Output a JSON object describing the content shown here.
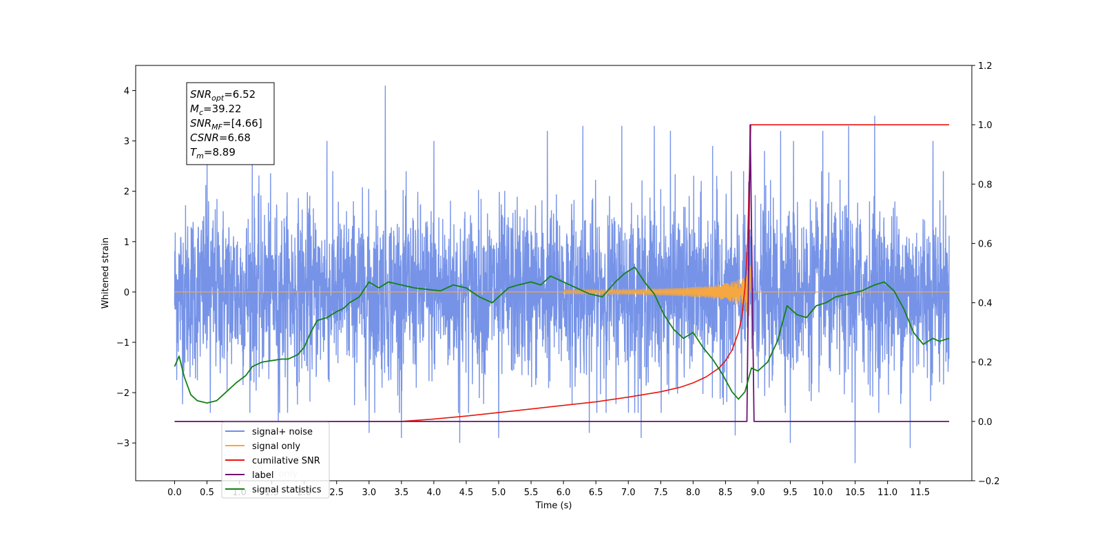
{
  "chart_data": {
    "type": "line",
    "title": "",
    "xlabel": "Time (s)",
    "ylabel": "Whitened strain",
    "xlim": [
      -0.6,
      12.3
    ],
    "ylim": [
      -3.75,
      4.5
    ],
    "y2lim": [
      -0.2,
      1.2
    ],
    "x_ticks": [
      "0.0",
      "0.5",
      "1.0",
      "1.5",
      "2.0",
      "2.5",
      "3.0",
      "3.5",
      "4.0",
      "4.5",
      "5.0",
      "5.5",
      "6.0",
      "6.5",
      "7.0",
      "7.5",
      "8.0",
      "8.5",
      "9.0",
      "9.5",
      "10.0",
      "10.5",
      "11.0",
      "11.5"
    ],
    "y_ticks": [
      "−3",
      "−2",
      "−1",
      "0",
      "1",
      "2",
      "3",
      "4"
    ],
    "y2_ticks": [
      "−0.2",
      "0.0",
      "0.2",
      "0.4",
      "0.6",
      "0.8",
      "1.0",
      "1.2"
    ],
    "grid": false,
    "legend_position": "lower-left",
    "annotation": {
      "lines": [
        {
          "name": "SNR",
          "sub": "opt",
          "value": "=6.52"
        },
        {
          "name": "M",
          "sub": "c",
          "value": "=39.22"
        },
        {
          "name": "SNR",
          "sub": "MF",
          "value": "=[4.66]"
        },
        {
          "name": "CSNR",
          "sub": "",
          "value": "=6.68"
        },
        {
          "name": "T",
          "sub": "m",
          "value": "=8.89"
        }
      ]
    },
    "series": [
      {
        "name": "signal+ noise",
        "axis": "left",
        "color": "#6f8de6",
        "description": "whitened noise band approx ±1 with spikes",
        "band_upper": [
          2.1,
          2.2,
          2.3,
          2.2,
          2.3,
          2.4,
          2.5,
          2.3,
          2.2,
          2.6,
          2.8,
          2.5,
          2.3,
          2.4,
          2.2,
          2.3
        ],
        "spikes": [
          [
            0.5,
            2.6
          ],
          [
            0.55,
            -2.4
          ],
          [
            1.2,
            2.7
          ],
          [
            1.6,
            -2.6
          ],
          [
            2.35,
            3.0
          ],
          [
            3.25,
            4.1
          ],
          [
            3.0,
            -2.8
          ],
          [
            3.5,
            -2.9
          ],
          [
            4.0,
            3.0
          ],
          [
            4.4,
            -3.0
          ],
          [
            5.0,
            3.2
          ],
          [
            5.0,
            -2.9
          ],
          [
            5.75,
            3.2
          ],
          [
            6.3,
            3.3
          ],
          [
            6.4,
            -2.8
          ],
          [
            6.9,
            3.3
          ],
          [
            7.2,
            -2.9
          ],
          [
            7.4,
            3.3
          ],
          [
            7.65,
            3.2
          ],
          [
            8.3,
            2.9
          ],
          [
            8.65,
            -2.85
          ],
          [
            9.1,
            2.8
          ],
          [
            9.35,
            3.2
          ],
          [
            9.5,
            -3.0
          ],
          [
            9.55,
            3.0
          ],
          [
            10.0,
            3.2
          ],
          [
            10.4,
            3.3
          ],
          [
            10.5,
            -3.4
          ],
          [
            10.8,
            3.5
          ],
          [
            11.35,
            -3.1
          ],
          [
            11.7,
            3.0
          ]
        ]
      },
      {
        "name": "signal only",
        "axis": "left",
        "color": "#f5a742",
        "chirp_end": 8.89
      },
      {
        "name": "cumilative SNR",
        "axis": "right",
        "color": "#e8130c",
        "x": [
          0.0,
          3.0,
          3.5,
          4.0,
          4.5,
          5.0,
          5.5,
          6.0,
          6.5,
          7.0,
          7.5,
          7.8,
          8.0,
          8.2,
          8.4,
          8.5,
          8.6,
          8.7,
          8.75,
          8.8,
          8.84,
          8.87,
          8.89,
          11.95
        ],
        "y": [
          0.0,
          0.0,
          0.0,
          0.008,
          0.018,
          0.03,
          0.042,
          0.054,
          0.066,
          0.082,
          0.1,
          0.115,
          0.13,
          0.15,
          0.18,
          0.205,
          0.24,
          0.3,
          0.35,
          0.45,
          0.6,
          0.85,
          1.0,
          1.0
        ]
      },
      {
        "name": "label",
        "axis": "right",
        "color": "#6c0f73",
        "x": [
          0.0,
          8.83,
          8.88,
          8.94,
          11.95
        ],
        "y": [
          0.0,
          0.0,
          1.0,
          0.0,
          0.0
        ]
      },
      {
        "name": "signal statistics",
        "axis": "right",
        "color": "#128012",
        "x": [
          0.0,
          0.07,
          0.15,
          0.25,
          0.35,
          0.5,
          0.65,
          0.8,
          0.95,
          1.1,
          1.2,
          1.35,
          1.5,
          1.65,
          1.75,
          1.9,
          2.0,
          2.1,
          2.2,
          2.35,
          2.5,
          2.6,
          2.7,
          2.85,
          3.0,
          3.15,
          3.3,
          3.5,
          3.7,
          3.9,
          4.1,
          4.3,
          4.5,
          4.7,
          4.9,
          5.0,
          5.15,
          5.3,
          5.5,
          5.65,
          5.8,
          6.0,
          6.2,
          6.4,
          6.6,
          6.8,
          6.95,
          7.1,
          7.25,
          7.4,
          7.55,
          7.7,
          7.85,
          8.0,
          8.15,
          8.3,
          8.45,
          8.6,
          8.7,
          8.8,
          8.9,
          9.0,
          9.15,
          9.3,
          9.45,
          9.6,
          9.75,
          9.9,
          10.05,
          10.2,
          10.4,
          10.6,
          10.8,
          10.95,
          11.1,
          11.25,
          11.4,
          11.55,
          11.7,
          11.8,
          11.95
        ],
        "y": [
          0.185,
          0.22,
          0.15,
          0.09,
          0.07,
          0.062,
          0.07,
          0.1,
          0.13,
          0.155,
          0.185,
          0.2,
          0.205,
          0.21,
          0.21,
          0.225,
          0.25,
          0.3,
          0.34,
          0.35,
          0.37,
          0.38,
          0.4,
          0.42,
          0.47,
          0.45,
          0.47,
          0.46,
          0.45,
          0.445,
          0.44,
          0.46,
          0.45,
          0.42,
          0.4,
          0.42,
          0.45,
          0.46,
          0.47,
          0.46,
          0.49,
          0.47,
          0.45,
          0.43,
          0.42,
          0.47,
          0.5,
          0.52,
          0.47,
          0.43,
          0.36,
          0.31,
          0.28,
          0.3,
          0.25,
          0.21,
          0.16,
          0.1,
          0.075,
          0.1,
          0.18,
          0.17,
          0.2,
          0.27,
          0.39,
          0.36,
          0.35,
          0.39,
          0.4,
          0.42,
          0.43,
          0.44,
          0.46,
          0.47,
          0.44,
          0.38,
          0.3,
          0.26,
          0.28,
          0.27,
          0.28
        ]
      }
    ],
    "legend_overlap_text": [
      "label",
      "noise only"
    ]
  }
}
